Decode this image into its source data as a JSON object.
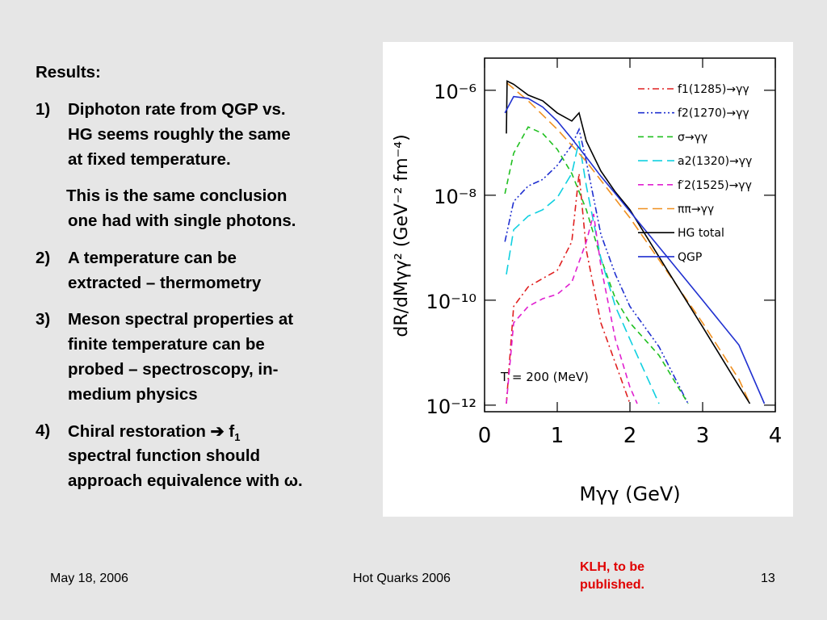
{
  "slide": {
    "heading": "Results:",
    "items": [
      {
        "number": "1)",
        "lines": [
          "Diphoton rate from QGP vs.",
          "HG seems roughly the same",
          "at fixed temperature."
        ]
      },
      {
        "number": "",
        "lines": [
          "This is the same conclusion",
          "one had with single photons."
        ]
      },
      {
        "number": "2)",
        "lines": [
          "A temperature can be",
          "extracted – thermometry"
        ]
      },
      {
        "number": "3)",
        "lines": [
          "Meson spectral properties at",
          "finite temperature can be",
          "probed – spectroscopy, in-",
          "medium physics"
        ]
      },
      {
        "number": "4)",
        "lines": [
          "Chiral restoration ➔ f",
          "spectral function should",
          "approach equivalence with ω."
        ],
        "subscript": "1"
      }
    ],
    "footer_date": "May 18, 2006",
    "footer_title": "Hot Quarks 2006",
    "footer_note": "KLH, to be published.",
    "footer_page": "13"
  },
  "chart_data": {
    "type": "line",
    "xlabel": "Mγγ (GeV)",
    "ylabel": "dR/dMγγ² (GeV⁻² fm⁻⁴)",
    "annotation": "T = 200 (MeV)",
    "log_y": true,
    "xlim": [
      0,
      4
    ],
    "ylim": [
      7.5e-13,
      4.1e-06
    ],
    "xticks": [
      0,
      1,
      2,
      3,
      4
    ],
    "yticks": [
      {
        "value": 1e-06,
        "label": "10⁻⁶"
      },
      {
        "value": 1e-08,
        "label": "10⁻⁸"
      },
      {
        "value": 1e-10,
        "label": "10⁻¹⁰"
      },
      {
        "value": 1e-12,
        "label": "10⁻¹²"
      }
    ],
    "legend": "upper right",
    "series": [
      {
        "name": "f1(1285)→γγ",
        "color": "#e02020",
        "style": "dashdot",
        "x": [
          0.3,
          0.4,
          0.6,
          0.8,
          1.0,
          1.2,
          1.3,
          1.4,
          1.6,
          1.8,
          2.0
        ],
        "values": [
          1.07e-12,
          7.6e-11,
          1.8e-10,
          2.6e-10,
          3.7e-10,
          1.3e-09,
          2.6e-08,
          8.9e-10,
          3.7e-11,
          6.3e-12,
          1.07e-12
        ]
      },
      {
        "name": "f2(1270)→γγ",
        "color": "#2030d0",
        "style": "dashdotdot",
        "x": [
          0.28,
          0.4,
          0.6,
          0.8,
          1.0,
          1.2,
          1.3,
          1.4,
          1.6,
          1.8,
          2.0,
          2.4,
          2.8
        ],
        "values": [
          1.3e-09,
          7.6e-09,
          1.5e-08,
          2e-08,
          3.7e-08,
          9e-08,
          1.8e-07,
          4.4e-08,
          1.8e-09,
          3.1e-10,
          7.6e-11,
          1.3e-11,
          1.07e-12
        ]
      },
      {
        "name": "σ→γγ",
        "color": "#20c020",
        "style": "dash",
        "x": [
          0.28,
          0.4,
          0.6,
          0.8,
          1.0,
          1.2,
          1.4,
          1.6,
          1.8,
          2.0,
          2.4,
          2.8
        ],
        "values": [
          1.07e-08,
          6.3e-08,
          2e-07,
          1.5e-07,
          7.5e-08,
          2.6e-08,
          5.3e-09,
          6.3e-10,
          1.07e-10,
          3.7e-11,
          8.9e-12,
          1.07e-12
        ]
      },
      {
        "name": "a2(1320)→γγ",
        "color": "#10d0e0",
        "style": "longdash",
        "x": [
          0.3,
          0.4,
          0.6,
          0.8,
          1.0,
          1.2,
          1.3,
          1.4,
          1.6,
          1.8,
          2.0,
          2.4
        ],
        "values": [
          3.1e-10,
          2.2e-09,
          4e-09,
          5.3e-09,
          9e-09,
          2.6e-08,
          1.07e-07,
          1.5e-08,
          6.3e-10,
          7.6e-11,
          1.8e-11,
          1.07e-12
        ]
      },
      {
        "name": "f′2(1525)→γγ",
        "color": "#e020d0",
        "style": "dash",
        "x": [
          0.3,
          0.4,
          0.6,
          0.8,
          1.0,
          1.2,
          1.4,
          1.5,
          1.6,
          1.8,
          2.0,
          2.1
        ],
        "values": [
          1.07e-12,
          3.7e-11,
          7.6e-11,
          1.07e-10,
          1.3e-10,
          2.2e-10,
          1.3e-09,
          4.4e-09,
          4.5e-10,
          1.8e-11,
          2.2e-12,
          1.07e-12
        ]
      },
      {
        "name": "ππ→γγ",
        "color": "#f09020",
        "style": "longdash",
        "x": [
          0.3,
          0.6,
          1.0,
          1.4,
          2.0,
          2.5,
          3.0,
          3.5,
          3.65
        ],
        "values": [
          1.4e-06,
          6.3e-07,
          1.8e-07,
          4.4e-08,
          3.7e-09,
          3.7e-10,
          3.7e-11,
          3.1e-12,
          1.07e-12
        ]
      },
      {
        "name": "HG total",
        "color": "#000000",
        "style": "solid",
        "x": [
          0.3,
          0.31,
          0.4,
          0.6,
          0.8,
          1.0,
          1.2,
          1.3,
          1.4,
          1.6,
          1.8,
          2.0,
          2.5,
          3.0,
          3.5,
          3.65
        ],
        "values": [
          1.5e-07,
          1.5e-06,
          1.3e-06,
          8.1e-07,
          6.3e-07,
          3.7e-07,
          2.6e-07,
          3.7e-07,
          1.07e-07,
          2.9e-08,
          1.15e-08,
          5.3e-09,
          4e-10,
          3.1e-11,
          2.3e-12,
          1.07e-12
        ]
      },
      {
        "name": "QGP",
        "color": "#2030d0",
        "style": "solid",
        "x": [
          0.28,
          0.4,
          0.6,
          0.8,
          1.0,
          1.2,
          1.4,
          1.6,
          1.8,
          2.0,
          2.5,
          3.0,
          3.5,
          3.85
        ],
        "values": [
          3.7e-07,
          7.6e-07,
          7e-07,
          4.8e-07,
          2.6e-07,
          1.2e-07,
          5.3e-08,
          2.3e-08,
          1.07e-08,
          4.9e-09,
          7e-10,
          1e-10,
          1.4e-11,
          1.07e-12
        ]
      }
    ]
  }
}
